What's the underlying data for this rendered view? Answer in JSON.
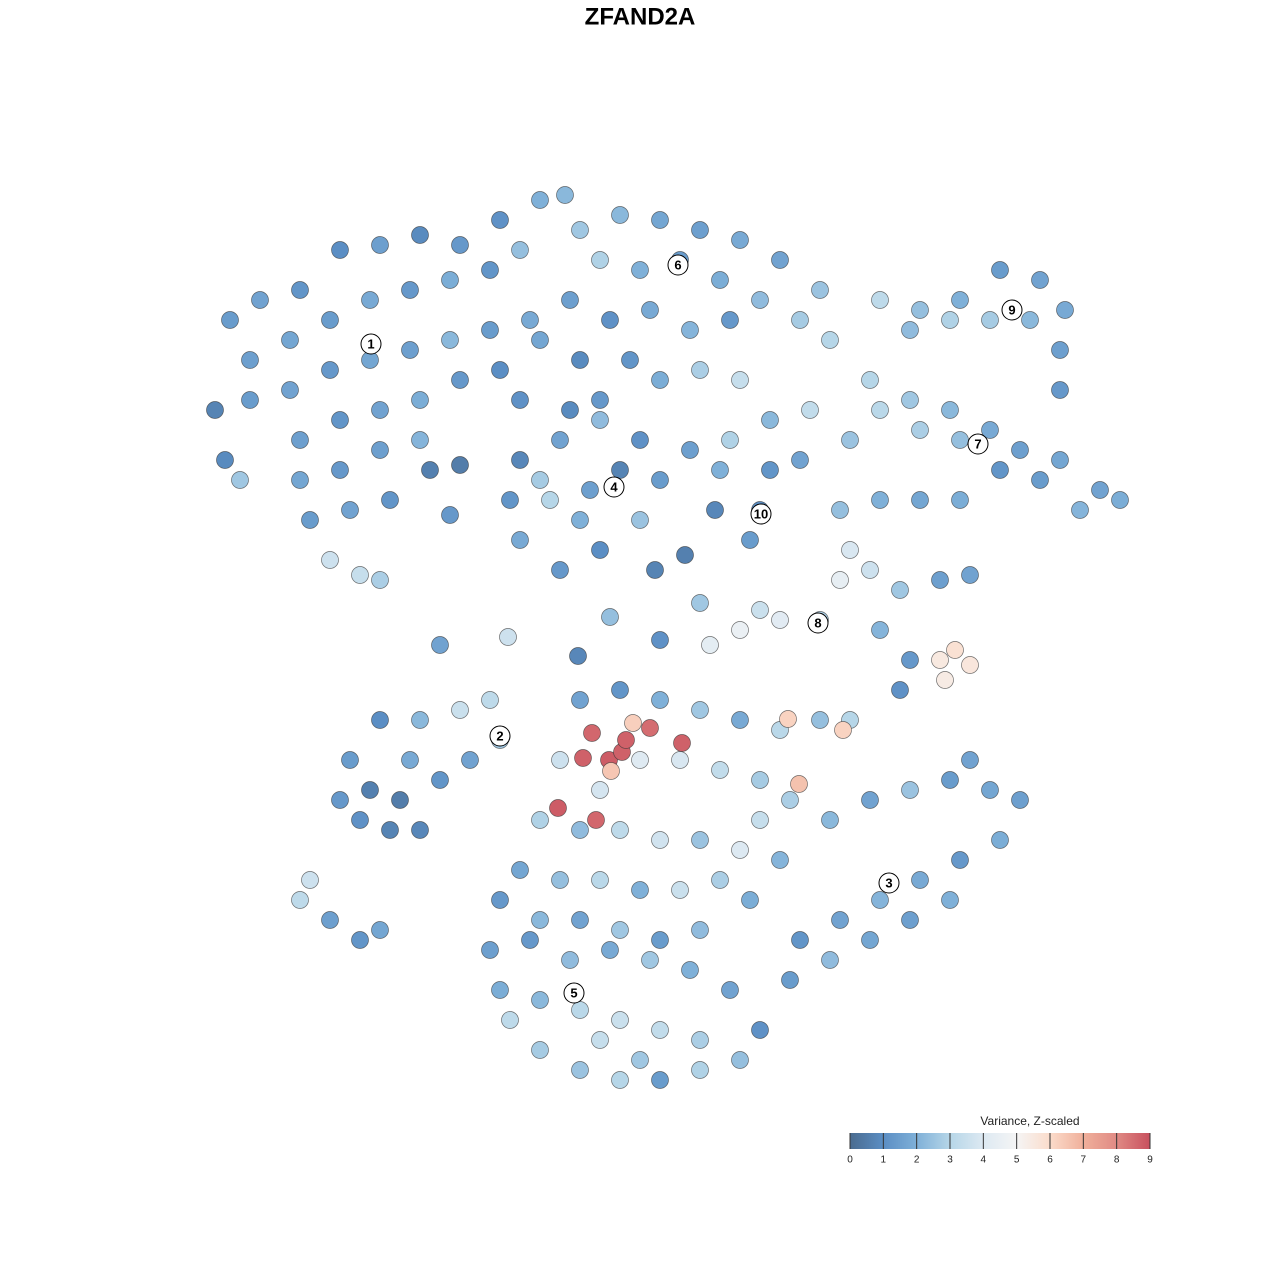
{
  "chart_data": {
    "type": "scatter",
    "title": "ZFAND2A",
    "xlim": [
      -64,
      64
    ],
    "ylim": [
      -64,
      64
    ],
    "clim": [
      0,
      9
    ],
    "colorscale": [
      "#4a6b8f",
      "#5b8ec4",
      "#7fb0d8",
      "#b6d6e8",
      "#dde9f2",
      "#f5f5f5",
      "#fbdccb",
      "#f0b09b",
      "#e08a84",
      "#c8505e"
    ],
    "colorbar": {
      "title": "Variance, Z-scaled",
      "ticks": [
        0,
        1,
        2,
        3,
        4,
        5,
        6,
        7,
        8,
        9
      ]
    },
    "cluster_labels": [
      {
        "label": "1",
        "x": -26.9,
        "y": 29.6
      },
      {
        "label": "6",
        "x": 3.8,
        "y": 37.5
      },
      {
        "label": "9",
        "x": 37.2,
        "y": 33
      },
      {
        "label": "7",
        "x": 33.8,
        "y": 19.6
      },
      {
        "label": "4",
        "x": -2.6,
        "y": 15.3
      },
      {
        "label": "10",
        "x": 12.1,
        "y": 12.6
      },
      {
        "label": "8",
        "x": 17.8,
        "y": 1.7
      },
      {
        "label": "2",
        "x": -14,
        "y": -9.6
      },
      {
        "label": "3",
        "x": 24.9,
        "y": -24.3
      },
      {
        "label": "5",
        "x": -6.6,
        "y": -35.3
      }
    ],
    "x": [
      -41,
      -38,
      -34,
      -30,
      -26,
      -22,
      -18,
      -14,
      -10,
      -7.5,
      -39,
      -35,
      -31,
      -27,
      -23,
      -19,
      -15,
      -12,
      -42.5,
      -39,
      -35,
      -31,
      -27,
      -23,
      -19,
      -15,
      -11,
      -34,
      -30,
      -26,
      -22,
      -18,
      -14,
      -34,
      -30,
      -26,
      -22,
      -33,
      -29,
      -25,
      -31,
      -28,
      -26,
      -40,
      -41.5,
      -21,
      -18,
      -12,
      -6,
      -2,
      2,
      6,
      10,
      14,
      18,
      -4,
      0,
      4,
      8,
      12,
      16,
      19,
      -7,
      -3,
      1,
      5,
      9,
      -10,
      24,
      28,
      32,
      36,
      40,
      42.5,
      42,
      39,
      35,
      31,
      27,
      42,
      23,
      27,
      31,
      35,
      38,
      42,
      46,
      48,
      44,
      40,
      36,
      32,
      28,
      24,
      21,
      -12,
      -8,
      -4,
      0,
      2,
      0,
      -4,
      -8,
      -12,
      -13,
      -9,
      -5,
      -2,
      -6,
      -10,
      -4,
      -7,
      5,
      9,
      13,
      17,
      16,
      13,
      12,
      11,
      8,
      2,
      6,
      10,
      -1,
      -6,
      -19,
      7.5,
      1.5,
      4.5,
      20,
      24,
      28,
      32,
      21,
      23,
      20,
      26,
      30,
      33,
      24,
      27,
      26,
      30,
      31.5,
      33,
      30.5,
      14,
      10,
      7,
      12,
      18,
      -30,
      -27,
      -24,
      -22,
      -25,
      -28,
      -29,
      -26,
      -22,
      -18,
      -15,
      -14,
      -17,
      -20,
      -23,
      -34,
      -31,
      -28,
      -26,
      -33,
      15,
      19,
      23,
      27,
      31,
      35,
      38,
      36,
      32,
      28,
      24,
      20,
      16,
      15,
      19,
      23,
      27,
      31,
      33,
      -6,
      -2,
      2,
      6,
      10,
      14,
      18,
      21,
      -8,
      -4,
      0,
      4,
      8,
      12,
      12,
      -10,
      -6,
      -2,
      2,
      6,
      10,
      14,
      -12,
      -8,
      -4,
      0,
      4,
      8,
      11,
      -14,
      -10,
      -6,
      -2,
      2,
      6,
      -5.7,
      -4.8,
      -3.1,
      -1.8,
      1,
      4.2,
      -8.2,
      -4.4,
      -1.4,
      -0.7,
      -2.9,
      14.8,
      15.9,
      20.3,
      -15,
      -11,
      -7,
      -3,
      1,
      5,
      9,
      12,
      10,
      6,
      2,
      -2,
      -6,
      -10,
      -13,
      -14,
      -10,
      -6,
      -2,
      2,
      6,
      -4,
      0,
      -20,
      -13.2,
      -6.2,
      -3,
      2,
      6
    ],
    "y": [
      32,
      34,
      35,
      39,
      39.5,
      40.5,
      39.5,
      42,
      44,
      44.5,
      28,
      30,
      32,
      34,
      35,
      36,
      37,
      39,
      23,
      24,
      25,
      27,
      28,
      29,
      30,
      31,
      32,
      20,
      22,
      23,
      24,
      26,
      27,
      16,
      17,
      19,
      20,
      12,
      13,
      14,
      8,
      6.5,
      6,
      16,
      18,
      17,
      17.5,
      24,
      41,
      42.5,
      42,
      41,
      40,
      38,
      35,
      38,
      37,
      38,
      36,
      34,
      32,
      30,
      34,
      32,
      33,
      31,
      32,
      30,
      34,
      33,
      34,
      37,
      36,
      33,
      29,
      32,
      32,
      32,
      31,
      25,
      26,
      24,
      23,
      21,
      19,
      18,
      15,
      14,
      13,
      16,
      17,
      20,
      21,
      23,
      20,
      18,
      20,
      22,
      20,
      16,
      12,
      9,
      7,
      10,
      14,
      14,
      15,
      17,
      12,
      16,
      24,
      23,
      19,
      20,
      22,
      23,
      18,
      17,
      13,
      10,
      17,
      26,
      27,
      26,
      28,
      28,
      12.5,
      13,
      7,
      8.5,
      13,
      14,
      14,
      14,
      9,
      7,
      6,
      5,
      6,
      6.5,
      1,
      -2,
      -5,
      -2,
      -1,
      -2.5,
      -4,
      2,
      1,
      -0.5,
      3,
      2,
      -16,
      -15,
      -16,
      -19,
      -19,
      -18,
      -12,
      -8,
      -8,
      -7,
      -6,
      -10,
      -12,
      -14,
      -12,
      -26,
      -28,
      -30,
      -29,
      -24,
      -16,
      -18,
      -16,
      -15,
      -14,
      -15,
      -16,
      -20,
      -22,
      -24,
      -26,
      -28,
      -30,
      -34,
      -32,
      -30,
      -28,
      -26,
      -12,
      -6,
      -5,
      -6,
      -7,
      -8,
      -9,
      -8,
      -8,
      -12,
      -15,
      -12,
      -12,
      -13,
      -14,
      -18,
      -18,
      -19,
      -19,
      -20,
      -20,
      -21,
      -22,
      -23,
      -24,
      -24,
      -25,
      -25,
      -24,
      -26,
      -26,
      -28,
      -28,
      -29,
      -30,
      -29,
      -11.8,
      -9.3,
      -12,
      -11.2,
      -8.8,
      -10.3,
      -16.8,
      -18,
      -10,
      -8.3,
      -13.1,
      -7.9,
      -14.4,
      -9,
      -31,
      -30,
      -32,
      -31,
      -32,
      -33,
      -35,
      -39,
      -42,
      -43,
      -44,
      -44,
      -43,
      -41,
      -38,
      -35,
      -36,
      -37,
      -38,
      -39,
      -40,
      -40,
      -42,
      -0.5,
      0.3,
      -1.6,
      2.3,
      0,
      3.7
    ],
    "values": [
      1.4,
      1.6,
      1.2,
      1.0,
      1.5,
      0.9,
      1.3,
      1.1,
      2.0,
      2.2,
      1.5,
      1.7,
      1.4,
      1.8,
      1.3,
      1.9,
      1.2,
      2.4,
      0.7,
      1.4,
      1.6,
      1.3,
      1.7,
      1.5,
      2.2,
      1.4,
      1.8,
      1.5,
      1.2,
      1.6,
      1.9,
      1.3,
      1.0,
      1.7,
      1.3,
      1.5,
      2.1,
      1.4,
      1.6,
      1.2,
      3.6,
      3.4,
      2.8,
      2.6,
      0.9,
      0.6,
      0.5,
      1.1,
      2.6,
      2.2,
      1.7,
      1.5,
      1.8,
      1.6,
      2.5,
      2.9,
      2.0,
      1.4,
      1.9,
      2.3,
      2.7,
      3.0,
      1.5,
      1.1,
      1.8,
      2.1,
      1.3,
      1.7,
      3.2,
      2.4,
      2.0,
      1.4,
      1.6,
      1.8,
      1.5,
      2.2,
      2.7,
      2.9,
      2.3,
      1.3,
      3.0,
      2.6,
      2.2,
      1.8,
      1.5,
      1.7,
      1.6,
      1.9,
      2.1,
      1.4,
      1.2,
      2.4,
      2.8,
      3.1,
      2.5,
      0.8,
      1.6,
      2.3,
      1.1,
      1.4,
      2.5,
      1.0,
      1.3,
      1.8,
      1.2,
      3.0,
      1.5,
      0.7,
      2.0,
      2.7,
      1.3,
      0.9,
      1.5,
      2.9,
      2.2,
      3.3,
      1.6,
      1.2,
      1.0,
      1.4,
      2.0,
      1.9,
      2.8,
      3.4,
      1.2,
      0.9,
      1.3,
      0.8,
      0.7,
      0.6,
      2.4,
      2.0,
      1.7,
      1.9,
      3.9,
      3.6,
      4.4,
      2.6,
      1.5,
      1.6,
      2.1,
      1.3,
      1.1,
      5.5,
      5.8,
      5.6,
      5.4,
      4.2,
      4.6,
      4.3,
      3.5,
      2.8,
      1.3,
      0.6,
      0.5,
      0.8,
      0.7,
      1.1,
      1.4,
      1.0,
      2.2,
      3.5,
      3.2,
      2.6,
      1.6,
      1.2,
      1.8,
      3.2,
      1.5,
      1.2,
      1.7,
      3.6,
      2.8,
      2.2,
      1.6,
      2.5,
      1.4,
      1.7,
      1.5,
      1.9,
      1.3,
      1.8,
      2.1,
      1.6,
      1.2,
      1.4,
      2.3,
      1.7,
      1.5,
      2.0,
      1.6,
      1.6,
      1.2,
      2.0,
      2.6,
      1.8,
      3.1,
      2.4,
      3.0,
      3.6,
      3.8,
      4.1,
      3.9,
      3.3,
      2.7,
      3.4,
      2.9,
      2.3,
      3.2,
      3.7,
      2.5,
      4.0,
      2.1,
      1.7,
      2.4,
      3.1,
      2.0,
      3.5,
      2.8,
      1.9,
      1.3,
      2.2,
      1.6,
      2.6,
      1.4,
      2.3,
      8.7,
      8.6,
      8.8,
      8.7,
      8.5,
      8.7,
      8.8,
      8.6,
      8.7,
      6.3,
      6.5,
      6.2,
      6.6,
      6.2,
      1.5,
      1.3,
      2.3,
      1.8,
      2.6,
      2.0,
      1.6,
      1.1,
      2.4,
      2.9,
      1.4,
      3.0,
      2.5,
      2.7,
      3.2,
      1.9,
      2.2,
      3.1,
      3.5,
      3.3,
      2.8,
      3.4,
      2.6,
      1.6,
      3.6,
      0.8,
      2.4,
      1.1,
      2.6
    ]
  }
}
